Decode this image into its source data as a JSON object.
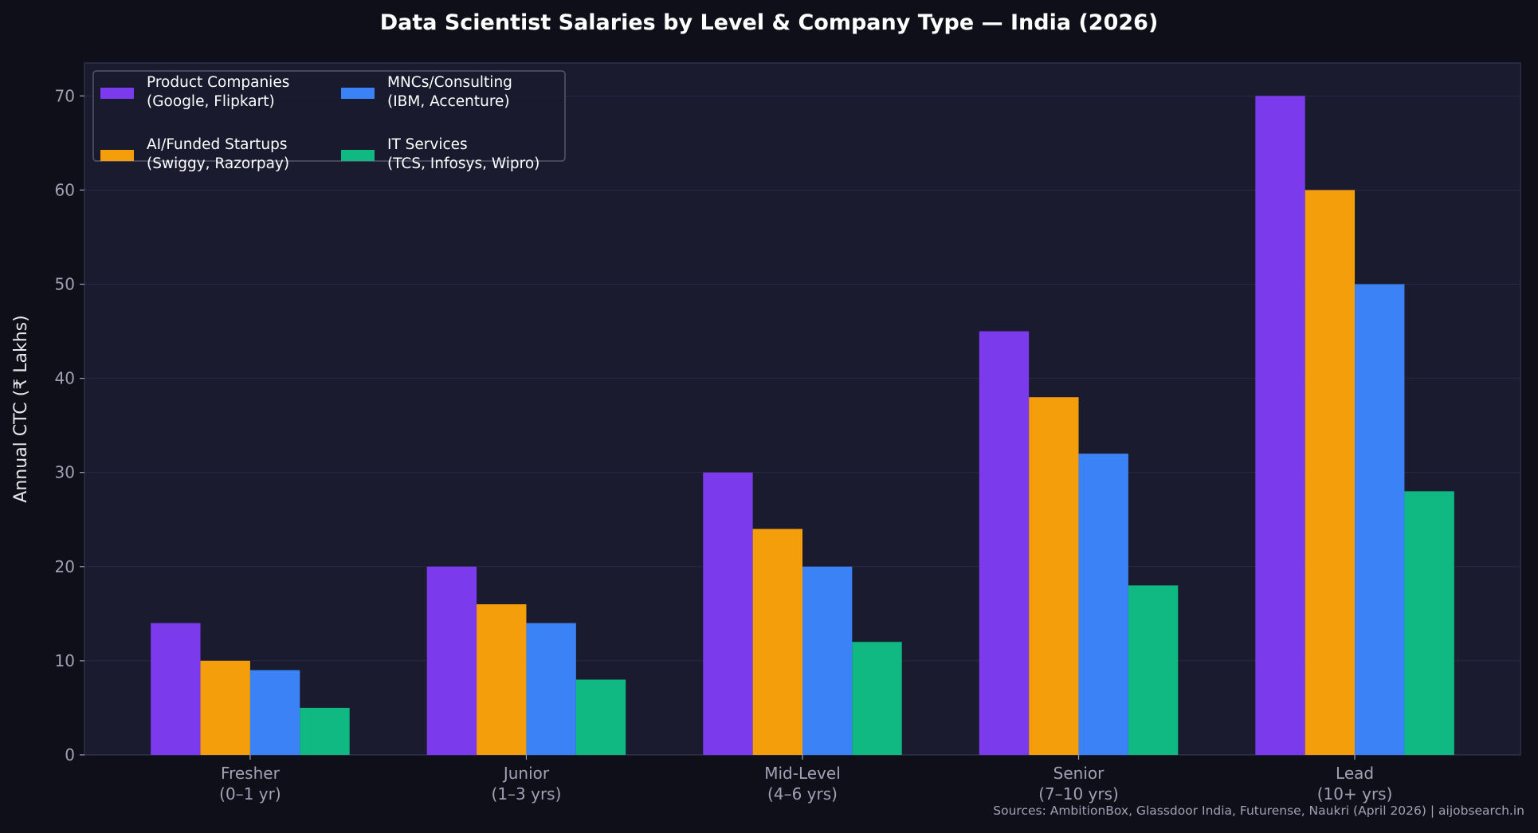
{
  "chart_data": {
    "type": "bar",
    "title": "Data Scientist Salaries by Level & Company Type — India (2026)",
    "xlabel": "",
    "ylabel": "Annual CTC (₹ Lakhs)",
    "ylim": [
      0,
      73.5
    ],
    "yticks": [
      0,
      10,
      20,
      30,
      40,
      50,
      60,
      70
    ],
    "grid": true,
    "legend_placement": "top-left",
    "categories": [
      [
        "Fresher",
        "(0–1 yr)"
      ],
      [
        "Junior",
        "(1–3 yrs)"
      ],
      [
        "Mid-Level",
        "(4–6 yrs)"
      ],
      [
        "Senior",
        "(7–10 yrs)"
      ],
      [
        "Lead",
        "(10+ yrs)"
      ]
    ],
    "series": [
      {
        "name": [
          "Product Companies",
          "(Google, Flipkart)"
        ],
        "color": "#7c3aed",
        "values": [
          14,
          20,
          30,
          45,
          70
        ]
      },
      {
        "name": [
          "AI/Funded Startups",
          "(Swiggy, Razorpay)"
        ],
        "color": "#f59e0b",
        "values": [
          10,
          16,
          24,
          38,
          60
        ]
      },
      {
        "name": [
          "MNCs/Consulting",
          "(IBM, Accenture)"
        ],
        "color": "#3b82f6",
        "values": [
          9,
          14,
          20,
          32,
          50
        ]
      },
      {
        "name": [
          "IT Services",
          "(TCS, Infosys, Wipro)"
        ],
        "color": "#10b981",
        "values": [
          5,
          8,
          12,
          18,
          28
        ]
      }
    ],
    "source_note": "Sources: AmbitionBox, Glassdoor India, Futurense, Naukri (April 2026) | aijobsearch.in"
  }
}
